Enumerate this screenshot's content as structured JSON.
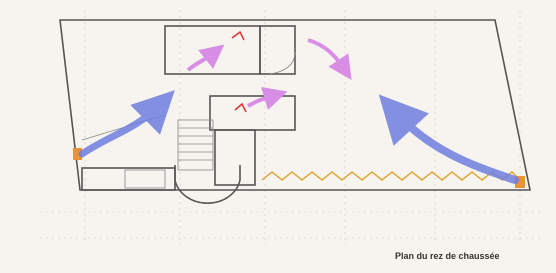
{
  "caption": "Plan du rez de chaussée"
}
